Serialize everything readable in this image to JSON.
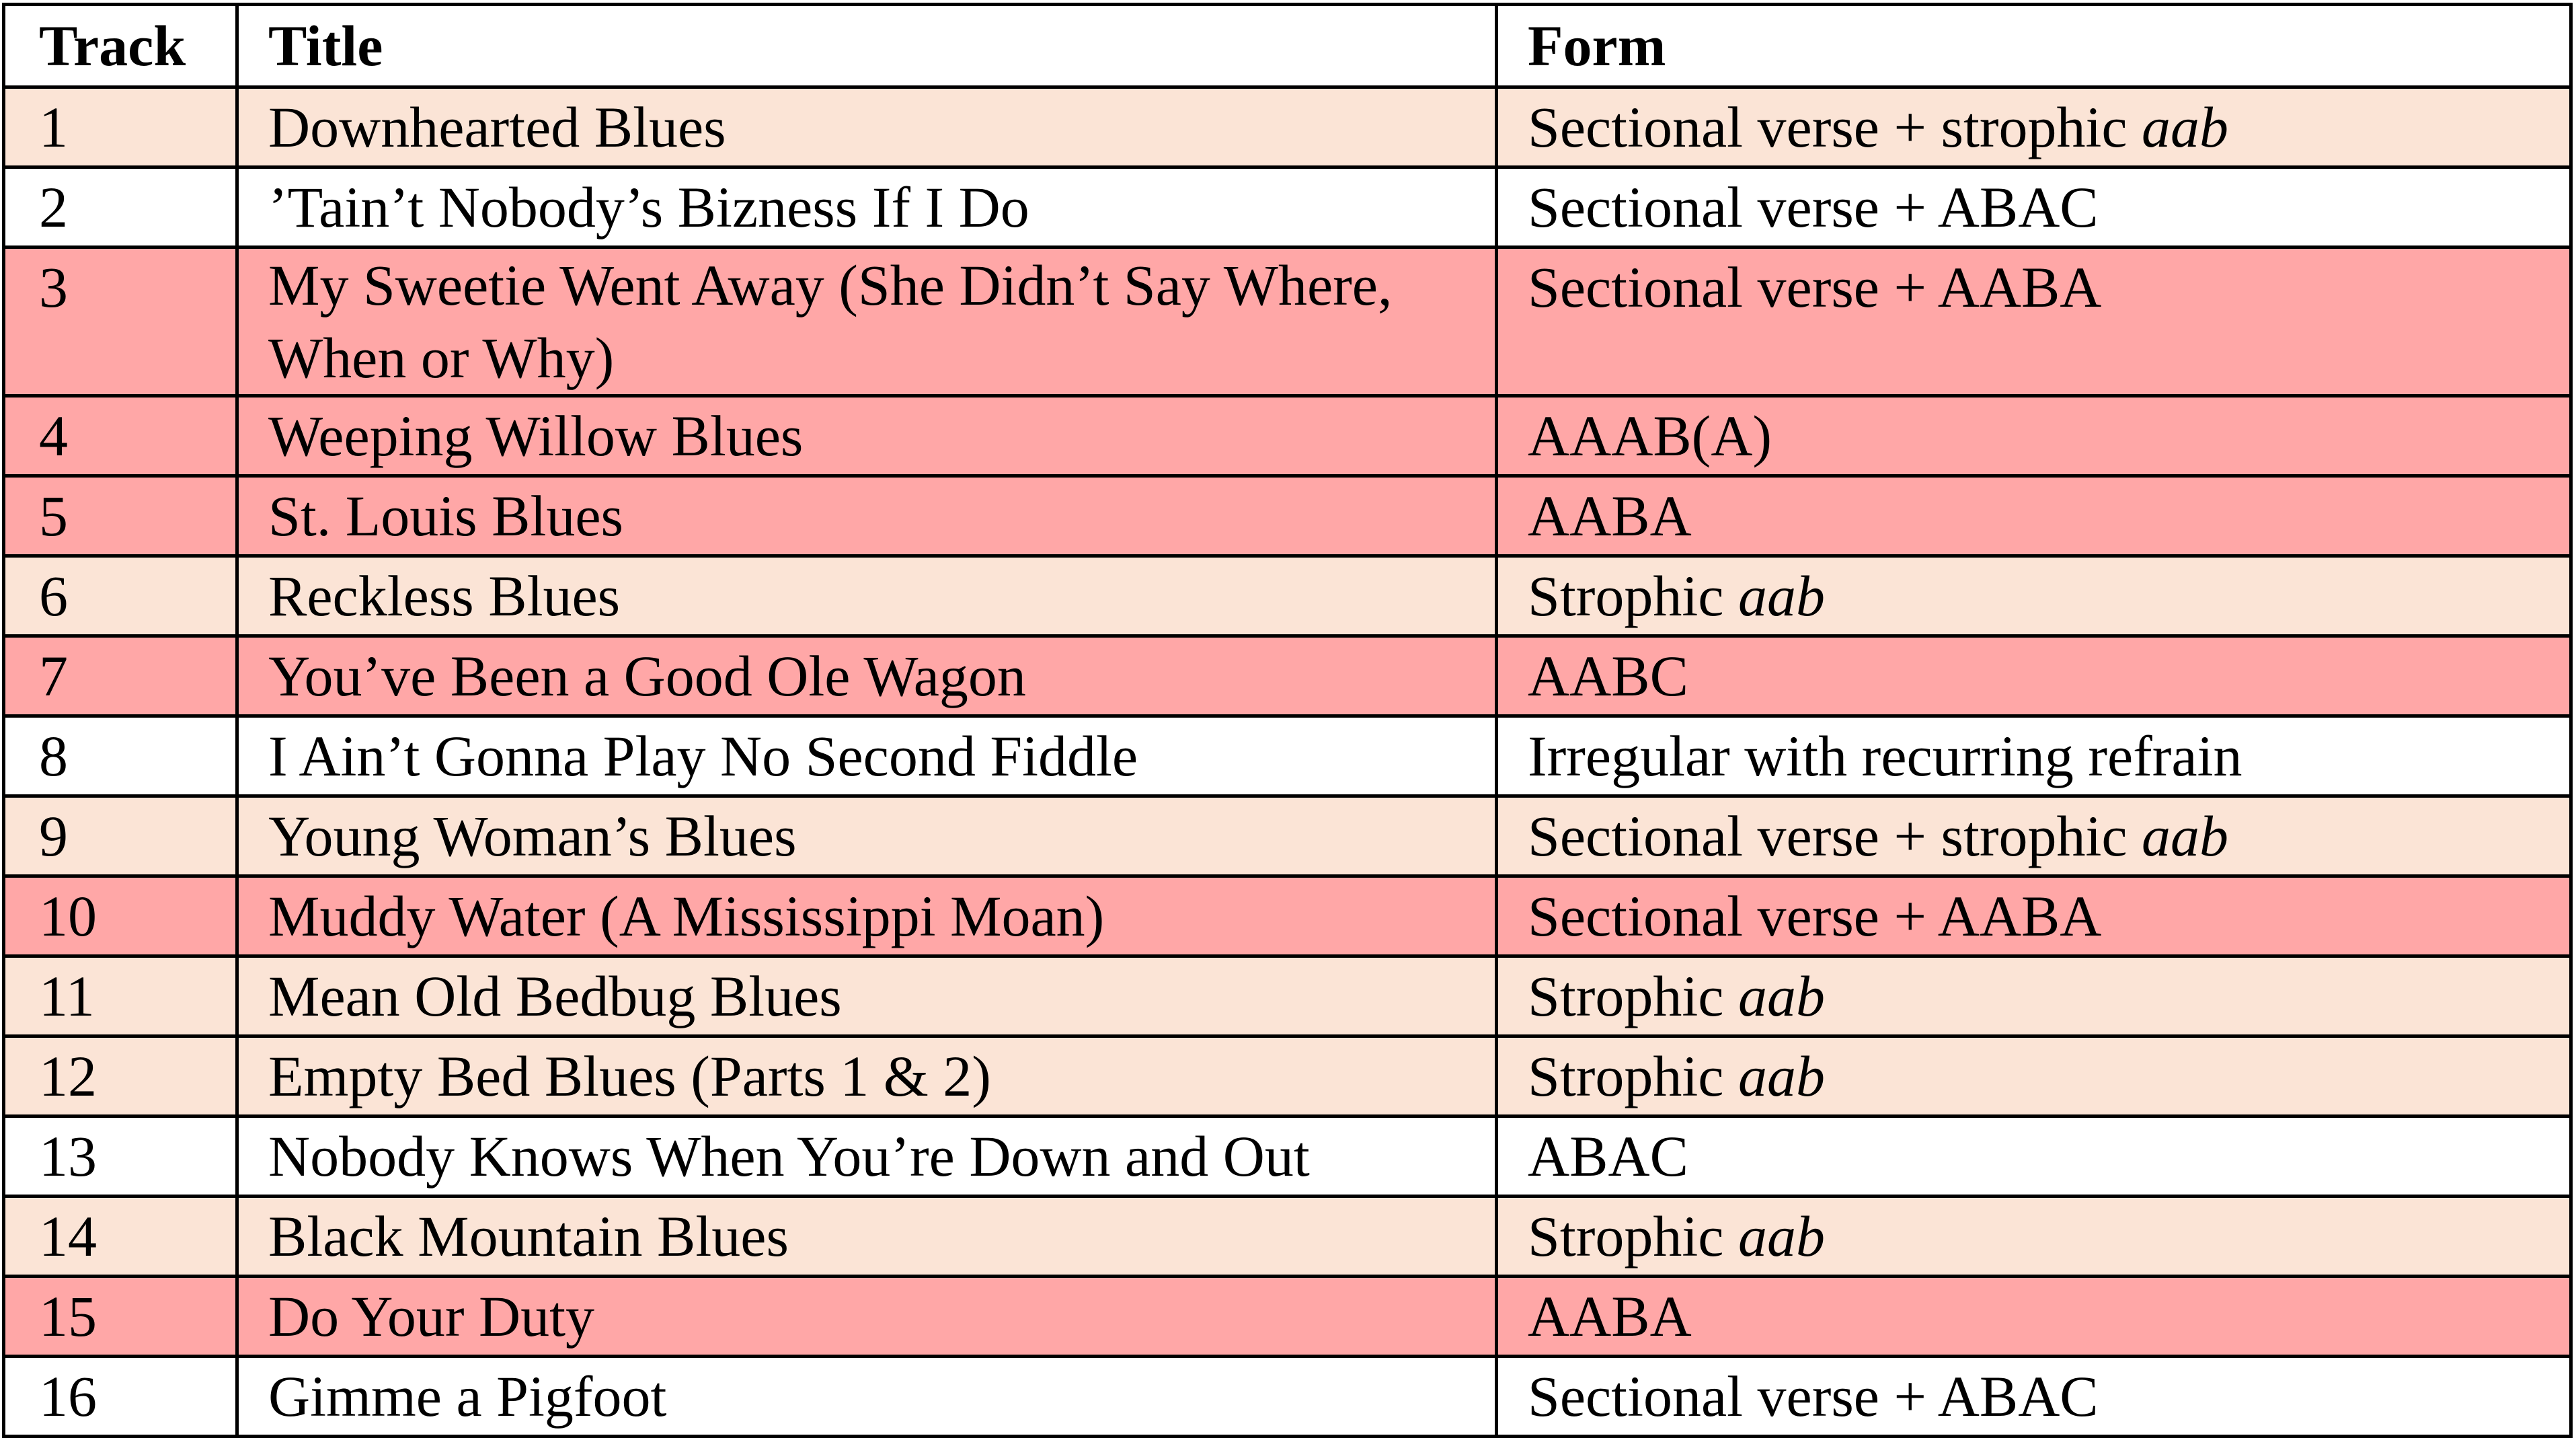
{
  "colors": {
    "peach": "#fbe4d6",
    "pink": "#ffa7a7",
    "white": "#ffffff"
  },
  "headers": {
    "track": "Track",
    "title": "Title",
    "form": "Form"
  },
  "rows": [
    {
      "track": "1",
      "title": "Downhearted Blues",
      "form": "Sectional verse + strophic ",
      "form_italic": "aab",
      "shade": "peach"
    },
    {
      "track": "2",
      "title": "’Tain’t Nobody’s Bizness If I Do",
      "form": "Sectional verse + ABAC",
      "form_italic": "",
      "shade": "white"
    },
    {
      "track": "3",
      "title": "My Sweetie Went Away (She Didn’t Say Where, When or Why)",
      "form": "Sectional verse + AABA",
      "form_italic": "",
      "shade": "pink"
    },
    {
      "track": "4",
      "title": "Weeping Willow Blues",
      "form": "AAAB(A)",
      "form_italic": "",
      "shade": "pink"
    },
    {
      "track": "5",
      "title": "St. Louis Blues",
      "form": "AABA",
      "form_italic": "",
      "shade": "pink"
    },
    {
      "track": "6",
      "title": "Reckless Blues",
      "form": "Strophic ",
      "form_italic": "aab",
      "shade": "peach"
    },
    {
      "track": "7",
      "title": "You’ve Been a Good Ole Wagon",
      "form": "AABC",
      "form_italic": "",
      "shade": "pink"
    },
    {
      "track": "8",
      "title": "I Ain’t Gonna Play No Second Fiddle",
      "form": "Irregular with recurring refrain",
      "form_italic": "",
      "shade": "white"
    },
    {
      "track": "9",
      "title": "Young Woman’s Blues",
      "form": "Sectional verse + strophic ",
      "form_italic": "aab",
      "shade": "peach"
    },
    {
      "track": "10",
      "title": "Muddy Water (A Mississippi Moan)",
      "form": "Sectional verse + AABA",
      "form_italic": "",
      "shade": "pink"
    },
    {
      "track": "11",
      "title": "Mean Old Bedbug Blues",
      "form": "Strophic ",
      "form_italic": "aab",
      "shade": "peach"
    },
    {
      "track": "12",
      "title": "Empty Bed Blues (Parts 1 & 2)",
      "form": "Strophic ",
      "form_italic": "aab",
      "shade": "peach"
    },
    {
      "track": "13",
      "title": "Nobody Knows When You’re Down and Out",
      "form": "ABAC",
      "form_italic": "",
      "shade": "white"
    },
    {
      "track": "14",
      "title": "Black Mountain Blues",
      "form": "Strophic ",
      "form_italic": "aab",
      "shade": "peach"
    },
    {
      "track": "15",
      "title": "Do Your Duty",
      "form": "AABA",
      "form_italic": "",
      "shade": "pink"
    },
    {
      "track": "16",
      "title": "Gimme a Pigfoot",
      "form": "Sectional verse + ABAC",
      "form_italic": "",
      "shade": "white"
    }
  ]
}
